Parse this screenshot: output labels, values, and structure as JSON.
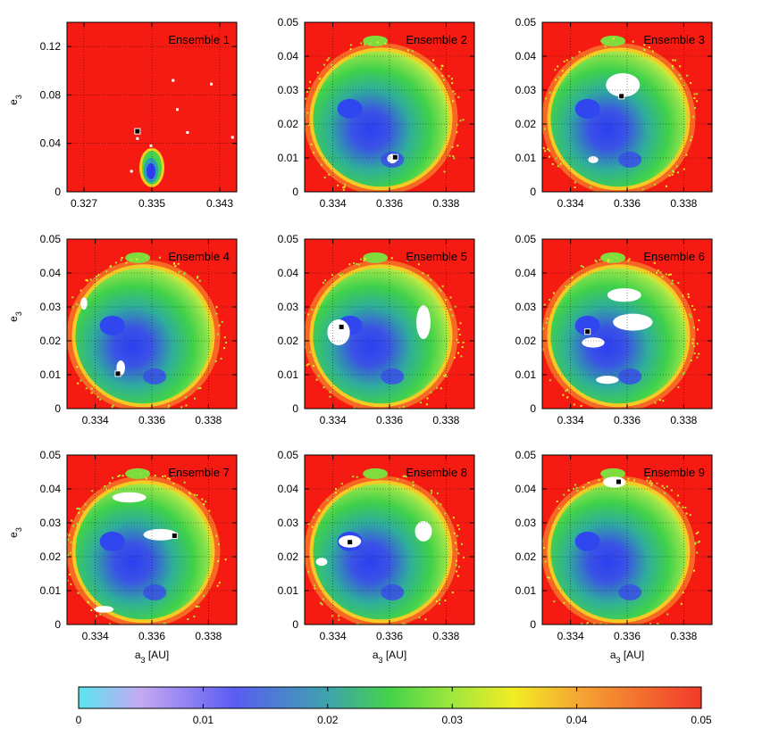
{
  "chart_data": {
    "type": "heatmap",
    "description_units": "panel grid of a3 vs e3 stability maps; color = max eccentricity",
    "panels": [
      {
        "title": "Ensemble 1",
        "xlim": [
          0.325,
          0.345
        ],
        "ylim": [
          0,
          0.14
        ],
        "xticks": [
          "0.327",
          "0.335",
          "0.343"
        ],
        "xtick_values": [
          0.327,
          0.335,
          0.343
        ],
        "yticks": [
          "0",
          "0.04",
          "0.08",
          "0.12"
        ],
        "ytick_values": [
          0,
          0.04,
          0.08,
          0.12
        ],
        "marker": {
          "a": 0.3333,
          "e": 0.05
        },
        "white_regions": []
      },
      {
        "title": "Ensemble 2",
        "xlim": [
          0.333,
          0.339
        ],
        "ylim": [
          0,
          0.05
        ],
        "xticks": [
          "0.334",
          "0.336",
          "0.338"
        ],
        "xtick_values": [
          0.334,
          0.336,
          0.338
        ],
        "yticks": [
          "0",
          "0.01",
          "0.02",
          "0.03",
          "0.04",
          "0.05"
        ],
        "ytick_values": [
          0,
          0.01,
          0.02,
          0.03,
          0.04,
          0.05
        ],
        "marker": {
          "a": 0.3362,
          "e": 0.0102
        },
        "white_regions": [
          {
            "a": 0.3361,
            "e": 0.0098,
            "da": 0.00018,
            "de": 0.0014
          }
        ]
      },
      {
        "title": "Ensemble 3",
        "xlim": [
          0.333,
          0.339
        ],
        "ylim": [
          0,
          0.05
        ],
        "xticks": [
          "0.334",
          "0.336",
          "0.338"
        ],
        "xtick_values": [
          0.334,
          0.336,
          0.338
        ],
        "yticks": [
          "0",
          "0.01",
          "0.02",
          "0.03",
          "0.04",
          "0.05"
        ],
        "ytick_values": [
          0,
          0.01,
          0.02,
          0.03,
          0.04,
          0.05
        ],
        "marker": {
          "a": 0.3358,
          "e": 0.0282
        },
        "white_regions": [
          {
            "a": 0.33585,
            "e": 0.0315,
            "da": 0.0006,
            "de": 0.0035
          },
          {
            "a": 0.3348,
            "e": 0.0095,
            "da": 0.00018,
            "de": 0.001
          }
        ]
      },
      {
        "title": "Ensemble 4",
        "xlim": [
          0.333,
          0.339
        ],
        "ylim": [
          0,
          0.05
        ],
        "xticks": [
          "0.334",
          "0.336",
          "0.338"
        ],
        "xtick_values": [
          0.334,
          0.336,
          0.338
        ],
        "yticks": [
          "0",
          "0.01",
          "0.02",
          "0.03",
          "0.04",
          "0.05"
        ],
        "ytick_values": [
          0,
          0.01,
          0.02,
          0.03,
          0.04,
          0.05
        ],
        "marker": {
          "a": 0.3348,
          "e": 0.0103
        },
        "white_regions": [
          {
            "a": 0.3336,
            "e": 0.031,
            "da": 0.00012,
            "de": 0.0018
          },
          {
            "a": 0.3349,
            "e": 0.012,
            "da": 0.00015,
            "de": 0.0022
          }
        ]
      },
      {
        "title": "Ensemble 5",
        "xlim": [
          0.333,
          0.339
        ],
        "ylim": [
          0,
          0.05
        ],
        "xticks": [
          "0.334",
          "0.336",
          "0.338"
        ],
        "xtick_values": [
          0.334,
          0.336,
          0.338
        ],
        "yticks": [
          "0",
          "0.01",
          "0.02",
          "0.03",
          "0.04",
          "0.05"
        ],
        "ytick_values": [
          0,
          0.01,
          0.02,
          0.03,
          0.04,
          0.05
        ],
        "marker": {
          "a": 0.3343,
          "e": 0.0241
        },
        "white_regions": [
          {
            "a": 0.3342,
            "e": 0.0225,
            "da": 0.0004,
            "de": 0.0038
          },
          {
            "a": 0.3372,
            "e": 0.0255,
            "da": 0.00025,
            "de": 0.005
          }
        ]
      },
      {
        "title": "Ensemble 6",
        "xlim": [
          0.333,
          0.339
        ],
        "ylim": [
          0,
          0.05
        ],
        "xticks": [
          "0.334",
          "0.336",
          "0.338"
        ],
        "xtick_values": [
          0.334,
          0.336,
          0.338
        ],
        "yticks": [
          "0",
          "0.01",
          "0.02",
          "0.03",
          "0.04",
          "0.05"
        ],
        "ytick_values": [
          0,
          0.01,
          0.02,
          0.03,
          0.04,
          0.05
        ],
        "marker": {
          "a": 0.3346,
          "e": 0.0227
        },
        "white_regions": [
          {
            "a": 0.3359,
            "e": 0.0335,
            "da": 0.0006,
            "de": 0.002
          },
          {
            "a": 0.3362,
            "e": 0.0255,
            "da": 0.0007,
            "de": 0.0025
          },
          {
            "a": 0.3348,
            "e": 0.0195,
            "da": 0.0004,
            "de": 0.0015
          },
          {
            "a": 0.3353,
            "e": 0.0085,
            "da": 0.0004,
            "de": 0.0012
          }
        ]
      },
      {
        "title": "Ensemble 7",
        "xlim": [
          0.333,
          0.339
        ],
        "ylim": [
          0,
          0.05
        ],
        "xticks": [
          "0.334",
          "0.336",
          "0.338"
        ],
        "xtick_values": [
          0.334,
          0.336,
          0.338
        ],
        "yticks": [
          "0",
          "0.01",
          "0.02",
          "0.03",
          "0.04",
          "0.05"
        ],
        "ytick_values": [
          0,
          0.01,
          0.02,
          0.03,
          0.04,
          0.05
        ],
        "marker": {
          "a": 0.3368,
          "e": 0.0262
        },
        "white_regions": [
          {
            "a": 0.3352,
            "e": 0.0375,
            "da": 0.0006,
            "de": 0.0015
          },
          {
            "a": 0.3363,
            "e": 0.0265,
            "da": 0.0006,
            "de": 0.0017
          },
          {
            "a": 0.3343,
            "e": 0.0045,
            "da": 0.00035,
            "de": 0.001
          }
        ]
      },
      {
        "title": "Ensemble 8",
        "xlim": [
          0.333,
          0.339
        ],
        "ylim": [
          0,
          0.05
        ],
        "xticks": [
          "0.334",
          "0.336",
          "0.338"
        ],
        "xtick_values": [
          0.334,
          0.336,
          0.338
        ],
        "yticks": [
          "0",
          "0.01",
          "0.02",
          "0.03",
          "0.04",
          "0.05"
        ],
        "ytick_values": [
          0,
          0.01,
          0.02,
          0.03,
          0.04,
          0.05
        ],
        "marker": {
          "a": 0.3346,
          "e": 0.0243
        },
        "white_regions": [
          {
            "a": 0.3346,
            "e": 0.0245,
            "da": 0.0004,
            "de": 0.0018
          },
          {
            "a": 0.3372,
            "e": 0.0275,
            "da": 0.0003,
            "de": 0.003
          },
          {
            "a": 0.3336,
            "e": 0.0185,
            "da": 0.0002,
            "de": 0.0012
          }
        ]
      },
      {
        "title": "Ensemble 9",
        "xlim": [
          0.333,
          0.339
        ],
        "ylim": [
          0,
          0.05
        ],
        "xticks": [
          "0.334",
          "0.336",
          "0.338"
        ],
        "xtick_values": [
          0.334,
          0.336,
          0.338
        ],
        "yticks": [
          "0",
          "0.01",
          "0.02",
          "0.03",
          "0.04",
          "0.05"
        ],
        "ytick_values": [
          0,
          0.01,
          0.02,
          0.03,
          0.04,
          0.05
        ],
        "marker": {
          "a": 0.3357,
          "e": 0.0421
        },
        "white_regions": [
          {
            "a": 0.33555,
            "e": 0.042,
            "da": 0.0004,
            "de": 0.0016
          }
        ]
      }
    ],
    "xlabel": "a",
    "xlabel_sub": "3",
    "xlabel_unit": "[AU]",
    "ylabel": "e",
    "ylabel_sub": "3",
    "colorbar": {
      "range": [
        0,
        0.05
      ],
      "ticks": [
        "0",
        "0.01",
        "0.02",
        "0.03",
        "0.04",
        "0.05"
      ],
      "tick_values": [
        0,
        0.01,
        0.02,
        0.03,
        0.04,
        0.05
      ],
      "stops": [
        {
          "v": 0.0,
          "color": "#59e5f0"
        },
        {
          "v": 0.005,
          "color": "#c6a9f2"
        },
        {
          "v": 0.0125,
          "color": "#5a5cf2"
        },
        {
          "v": 0.02,
          "color": "#3ea3ad"
        },
        {
          "v": 0.025,
          "color": "#44d34a"
        },
        {
          "v": 0.03,
          "color": "#9fe83c"
        },
        {
          "v": 0.035,
          "color": "#f3ec24"
        },
        {
          "v": 0.04,
          "color": "#f5a733"
        },
        {
          "v": 0.05,
          "color": "#f23a2a"
        }
      ]
    },
    "colors": {
      "unstable": "#f51b12",
      "core": "#2d3ff0",
      "white": "#ffffff",
      "marker": "#000000"
    },
    "grid": true
  }
}
